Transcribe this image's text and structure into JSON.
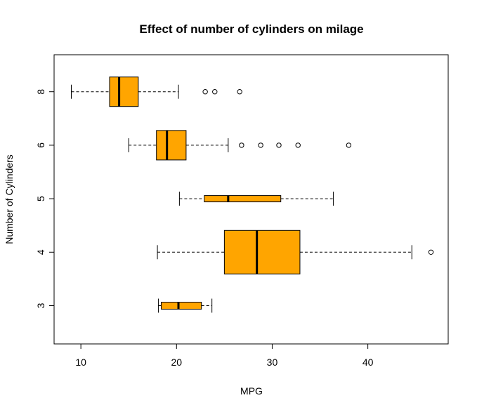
{
  "chart_data": {
    "type": "boxplot",
    "orientation": "horizontal",
    "title": "Effect of number of cylinders on milage",
    "xlabel": "MPG",
    "ylabel": "Number of Cylinders",
    "xlim": [
      7.2,
      48.4
    ],
    "xticks": [
      10,
      20,
      30,
      40
    ],
    "grid": false,
    "legend": "none",
    "box_color": "#FFA500",
    "categories": [
      "3",
      "4",
      "5",
      "6",
      "8"
    ],
    "boxes": [
      {
        "category": "3",
        "whisker_low": 18.1,
        "q1": 18.4,
        "median": 20.2,
        "q3": 22.6,
        "whisker_high": 23.7,
        "outliers": []
      },
      {
        "category": "4",
        "whisker_low": 18.0,
        "q1": 25.0,
        "median": 28.4,
        "q3": 32.9,
        "whisker_high": 44.6,
        "outliers": [
          46.6
        ]
      },
      {
        "category": "5",
        "whisker_low": 20.3,
        "q1": 22.9,
        "median": 25.4,
        "q3": 30.9,
        "whisker_high": 36.4,
        "outliers": []
      },
      {
        "category": "6",
        "whisker_low": 15.0,
        "q1": 17.9,
        "median": 19.0,
        "q3": 21.0,
        "whisker_high": 25.4,
        "outliers": [
          26.8,
          28.8,
          30.7,
          32.7,
          38.0
        ]
      },
      {
        "category": "8",
        "whisker_low": 9.0,
        "q1": 13.0,
        "median": 14.0,
        "q3": 16.0,
        "whisker_high": 20.2,
        "outliers": [
          23.0,
          24.0,
          26.6
        ]
      }
    ]
  }
}
